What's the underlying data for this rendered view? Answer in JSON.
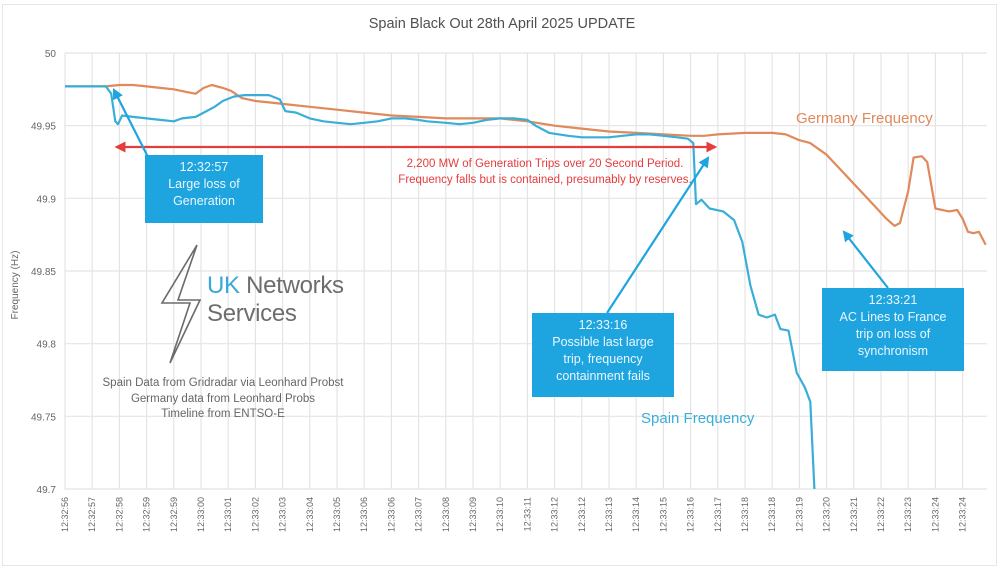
{
  "chart_data": {
    "type": "line",
    "title": "Spain Black Out 28th April 2025 UPDATE",
    "xlabel": "",
    "ylabel": "Frequency (Hz)",
    "ylim": [
      49.7,
      50
    ],
    "yticks": [
      "50",
      "49.95",
      "49.9",
      "49.85",
      "49.8",
      "49.75",
      "49.7"
    ],
    "ytick_values": [
      50,
      49.95,
      49.9,
      49.85,
      49.8,
      49.75,
      49.7
    ],
    "grid": true,
    "categories": [
      "12:32:56",
      "12:32:57",
      "12:32:58",
      "12:32:59",
      "12:32:59",
      "12:33:00",
      "12:33:01",
      "12:33:02",
      "12:33:03",
      "12:33:04",
      "12:33:05",
      "12:33:06",
      "12:33:06",
      "12:33:07",
      "12:33:08",
      "12:33:09",
      "12:33:10",
      "12:33:11",
      "12:33:12",
      "12:33:12",
      "12:33:13",
      "12:33:14",
      "12:33:15",
      "12:33:16",
      "12:33:17",
      "12:33:18",
      "12:33:18",
      "12:33:19",
      "12:33:20",
      "12:33:21",
      "12:33:22",
      "12:33:23",
      "12:33:24",
      "12:33:24"
    ],
    "x_index_range": [
      0,
      33.85
    ],
    "series": [
      {
        "name": "Germany Frequency",
        "color": "#e0895a",
        "points": [
          [
            0,
            49.977
          ],
          [
            1,
            49.977
          ],
          [
            1.5,
            49.977
          ],
          [
            2,
            49.978
          ],
          [
            2.5,
            49.978
          ],
          [
            3,
            49.977
          ],
          [
            3.5,
            49.976
          ],
          [
            4,
            49.975
          ],
          [
            4.5,
            49.973
          ],
          [
            4.8,
            49.972
          ],
          [
            5.1,
            49.976
          ],
          [
            5.4,
            49.978
          ],
          [
            5.8,
            49.976
          ],
          [
            6.1,
            49.974
          ],
          [
            6.5,
            49.969
          ],
          [
            7,
            49.967
          ],
          [
            7.5,
            49.966
          ],
          [
            8,
            49.965
          ],
          [
            9,
            49.963
          ],
          [
            10,
            49.961
          ],
          [
            11,
            49.959
          ],
          [
            12,
            49.957
          ],
          [
            13,
            49.956
          ],
          [
            14,
            49.955
          ],
          [
            15,
            49.955
          ],
          [
            16,
            49.955
          ],
          [
            17,
            49.953
          ],
          [
            18,
            49.95
          ],
          [
            19,
            49.948
          ],
          [
            20,
            49.946
          ],
          [
            21,
            49.945
          ],
          [
            22,
            49.944
          ],
          [
            23,
            49.943
          ],
          [
            23.5,
            49.943
          ],
          [
            24,
            49.944
          ],
          [
            25,
            49.945
          ],
          [
            26,
            49.945
          ],
          [
            26.5,
            49.944
          ],
          [
            27,
            49.94
          ],
          [
            27.4,
            49.938
          ],
          [
            28,
            49.93
          ],
          [
            28.5,
            49.92
          ],
          [
            29,
            49.91
          ],
          [
            29.5,
            49.9
          ],
          [
            29.9,
            49.892
          ],
          [
            30.2,
            49.886
          ],
          [
            30.5,
            49.881
          ],
          [
            30.7,
            49.883
          ],
          [
            31,
            49.905
          ],
          [
            31.2,
            49.928
          ],
          [
            31.5,
            49.929
          ],
          [
            31.7,
            49.925
          ],
          [
            32,
            49.893
          ],
          [
            32.5,
            49.891
          ],
          [
            32.8,
            49.892
          ],
          [
            33.0,
            49.886
          ],
          [
            33.2,
            49.877
          ],
          [
            33.4,
            49.876
          ],
          [
            33.6,
            49.877
          ],
          [
            33.85,
            49.868
          ]
        ]
      },
      {
        "name": "Spain Frequency",
        "color": "#3aaed8",
        "points": [
          [
            0,
            49.977
          ],
          [
            1,
            49.977
          ],
          [
            1.5,
            49.977
          ],
          [
            1.7,
            49.972
          ],
          [
            1.85,
            49.953
          ],
          [
            1.95,
            49.951
          ],
          [
            2.1,
            49.957
          ],
          [
            2.5,
            49.956
          ],
          [
            3,
            49.955
          ],
          [
            3.5,
            49.954
          ],
          [
            4,
            49.953
          ],
          [
            4.3,
            49.955
          ],
          [
            4.8,
            49.956
          ],
          [
            5.1,
            49.959
          ],
          [
            5.5,
            49.963
          ],
          [
            5.8,
            49.967
          ],
          [
            6.2,
            49.97
          ],
          [
            6.6,
            49.971
          ],
          [
            7,
            49.971
          ],
          [
            7.5,
            49.971
          ],
          [
            7.9,
            49.968
          ],
          [
            8.1,
            49.96
          ],
          [
            8.5,
            49.959
          ],
          [
            9,
            49.955
          ],
          [
            9.5,
            49.953
          ],
          [
            10,
            49.952
          ],
          [
            10.5,
            49.951
          ],
          [
            11,
            49.952
          ],
          [
            11.5,
            49.953
          ],
          [
            12,
            49.955
          ],
          [
            12.5,
            49.955
          ],
          [
            13,
            49.954
          ],
          [
            13.3,
            49.953
          ],
          [
            14,
            49.952
          ],
          [
            14.5,
            49.951
          ],
          [
            15,
            49.952
          ],
          [
            15.5,
            49.954
          ],
          [
            16,
            49.955
          ],
          [
            16.5,
            49.955
          ],
          [
            17,
            49.954
          ],
          [
            17.3,
            49.95
          ],
          [
            17.8,
            49.945
          ],
          [
            18.5,
            49.943
          ],
          [
            19,
            49.942
          ],
          [
            19.5,
            49.942
          ],
          [
            20,
            49.942
          ],
          [
            20.5,
            49.943
          ],
          [
            21,
            49.944
          ],
          [
            21.5,
            49.944
          ],
          [
            22,
            49.943
          ],
          [
            22.5,
            49.942
          ],
          [
            22.9,
            49.941
          ],
          [
            23.1,
            49.938
          ],
          [
            23.2,
            49.896
          ],
          [
            23.4,
            49.899
          ],
          [
            23.7,
            49.893
          ],
          [
            24.2,
            49.891
          ],
          [
            24.6,
            49.885
          ],
          [
            24.9,
            49.87
          ],
          [
            25.2,
            49.84
          ],
          [
            25.5,
            49.82
          ],
          [
            25.8,
            49.818
          ],
          [
            26.1,
            49.82
          ],
          [
            26.3,
            49.81
          ],
          [
            26.6,
            49.809
          ],
          [
            26.9,
            49.78
          ],
          [
            27.2,
            49.77
          ],
          [
            27.4,
            49.76
          ],
          [
            27.55,
            49.7
          ]
        ]
      }
    ],
    "annotations": [
      {
        "text": "2,200 MW of Generation Trips over 20 Second Period. Frequency falls but is contained, presumably by reserves.",
        "span": [
          "12:32:58",
          "12:33:16"
        ]
      },
      {
        "text": "12:32:57 Large loss of Generation"
      },
      {
        "text": "12:33:16 Possible last large trip, frequency containment fails"
      },
      {
        "text": "12:33:21 AC Lines to France trip on loss of synchronism"
      }
    ]
  },
  "title": "Spain Black Out 28th April 2025 UPDATE",
  "y_axis_label": "Frequency (Hz)",
  "series_labels": {
    "germany": "Germany Frequency",
    "spain": "Spain Frequency"
  },
  "colors": {
    "germany": "#e0895a",
    "spain": "#3aaed8",
    "callout": "#1ea5e0",
    "red_span": "#e53c3c",
    "grid": "#e4e4e4"
  },
  "callouts": {
    "loss": {
      "time": "12:32:57",
      "line1": "Large loss of",
      "line2": "Generation"
    },
    "last_trip": {
      "time": "12:33:16",
      "line1": "Possible last large",
      "line2": "trip, frequency",
      "line3": "containment fails"
    },
    "france": {
      "time": "12:33:21",
      "line1": "AC Lines to France",
      "line2": "trip on loss of",
      "line3": "synchronism"
    }
  },
  "red_note": {
    "line1": "2,200 MW of Generation Trips over 20 Second Period.",
    "line2": "Frequency falls but is contained, presumably by reserves."
  },
  "logo": {
    "uk": "UK",
    "networks": " Networks",
    "services": "Services"
  },
  "credits": {
    "line1": "Spain Data from Gridradar via Leonhard Probst",
    "line2": "Germany data from Leonhard Probs",
    "line3": "Timeline from ENTSO-E"
  }
}
